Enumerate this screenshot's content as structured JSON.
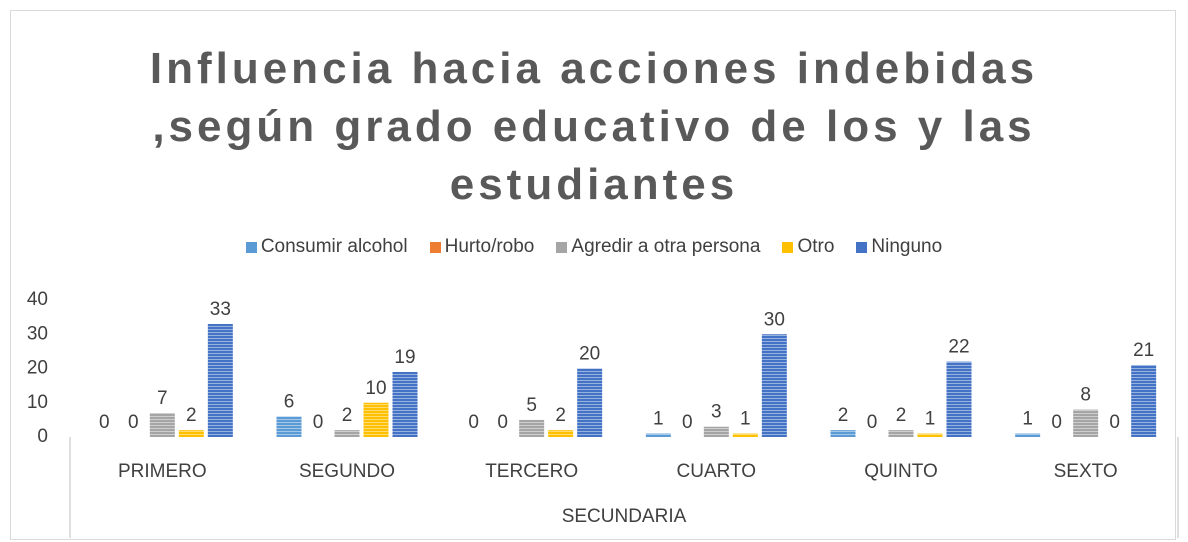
{
  "chart_data": {
    "type": "bar",
    "title": "Influencia hacia acciones indebidas ,según grado educativo de los y las estudiantes",
    "categories": [
      "PRIMERO",
      "SEGUNDO",
      "TERCERO",
      "CUARTO",
      "QUINTO",
      "SEXTO"
    ],
    "category_group": "SECUNDARIA",
    "series": [
      {
        "name": "Consumir alcohol",
        "color": "#5b9bd5",
        "values": [
          0,
          6,
          0,
          1,
          2,
          1
        ]
      },
      {
        "name": "Hurto/robo",
        "color": "#ed7d31",
        "values": [
          0,
          0,
          0,
          0,
          0,
          0
        ]
      },
      {
        "name": "Agredir a otra persona",
        "color": "#a5a5a5",
        "values": [
          7,
          2,
          5,
          3,
          2,
          8
        ]
      },
      {
        "name": "Otro",
        "color": "#ffc000",
        "values": [
          2,
          10,
          2,
          1,
          1,
          0
        ]
      },
      {
        "name": "Ninguno",
        "color": "#4472c4",
        "values": [
          33,
          19,
          20,
          30,
          22,
          21
        ]
      }
    ],
    "ylim": [
      0,
      40
    ],
    "yticks": [
      0,
      10,
      20,
      30,
      40
    ],
    "grid": false,
    "legend": "top"
  }
}
